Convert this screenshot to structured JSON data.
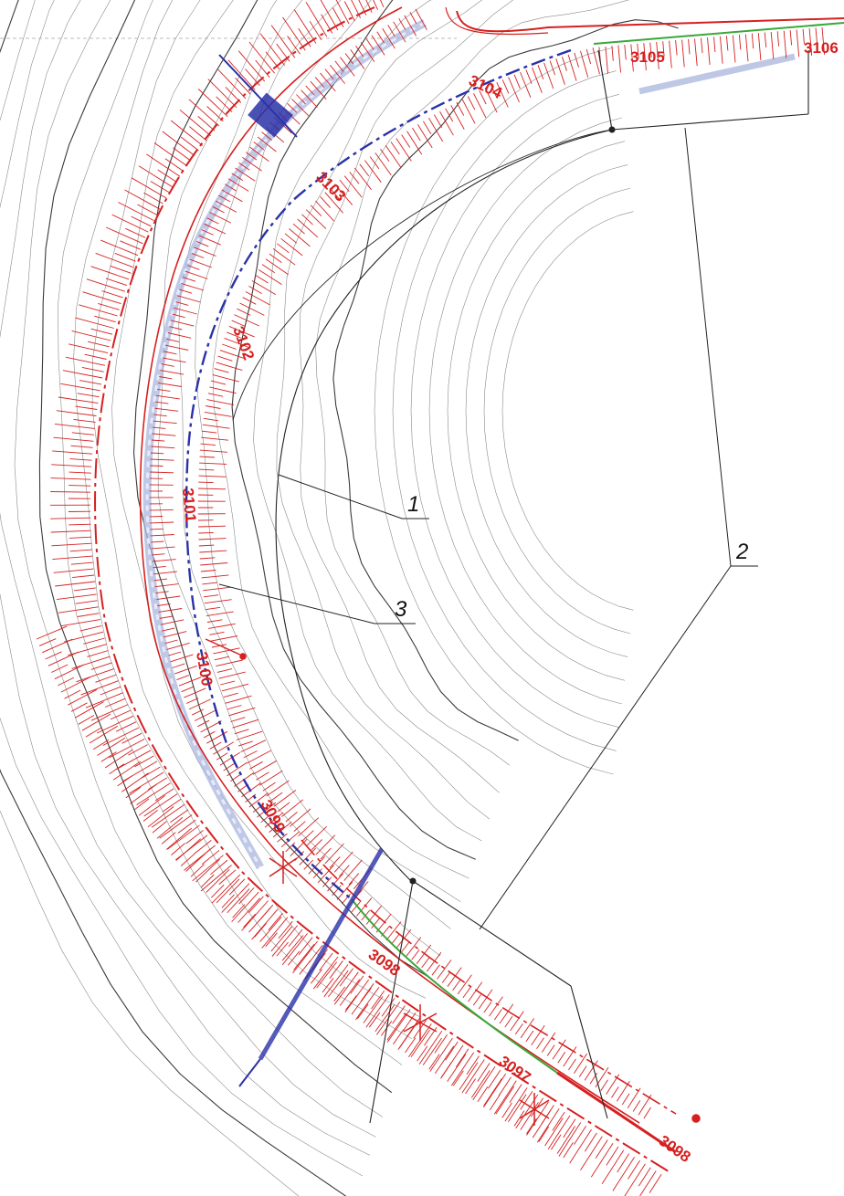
{
  "colors": {
    "background": "#ffffff",
    "contour": "#8a8a8a",
    "contour_dark": "#3a3a3a",
    "design_red": "#d62020",
    "axis_blue": "#2a32a8",
    "water_blue": "#a9b6dd",
    "green": "#3aa83a",
    "leader": "#222222"
  },
  "stations": [
    {
      "label": "3098",
      "rotated": true
    },
    {
      "label": "3097",
      "rotated": true
    },
    {
      "label": "3098",
      "rotated": true
    },
    {
      "label": "3099",
      "rotated": true
    },
    {
      "label": "3100",
      "rotated": true
    },
    {
      "label": "3101",
      "rotated": true
    },
    {
      "label": "3102",
      "rotated": true
    },
    {
      "label": "3103",
      "rotated": true
    },
    {
      "label": "3104",
      "rotated": true
    },
    {
      "label": "3105",
      "rotated": false
    },
    {
      "label": "3106",
      "rotated": false
    }
  ],
  "callouts": [
    {
      "label": "1"
    },
    {
      "label": "2"
    },
    {
      "label": "3"
    }
  ]
}
